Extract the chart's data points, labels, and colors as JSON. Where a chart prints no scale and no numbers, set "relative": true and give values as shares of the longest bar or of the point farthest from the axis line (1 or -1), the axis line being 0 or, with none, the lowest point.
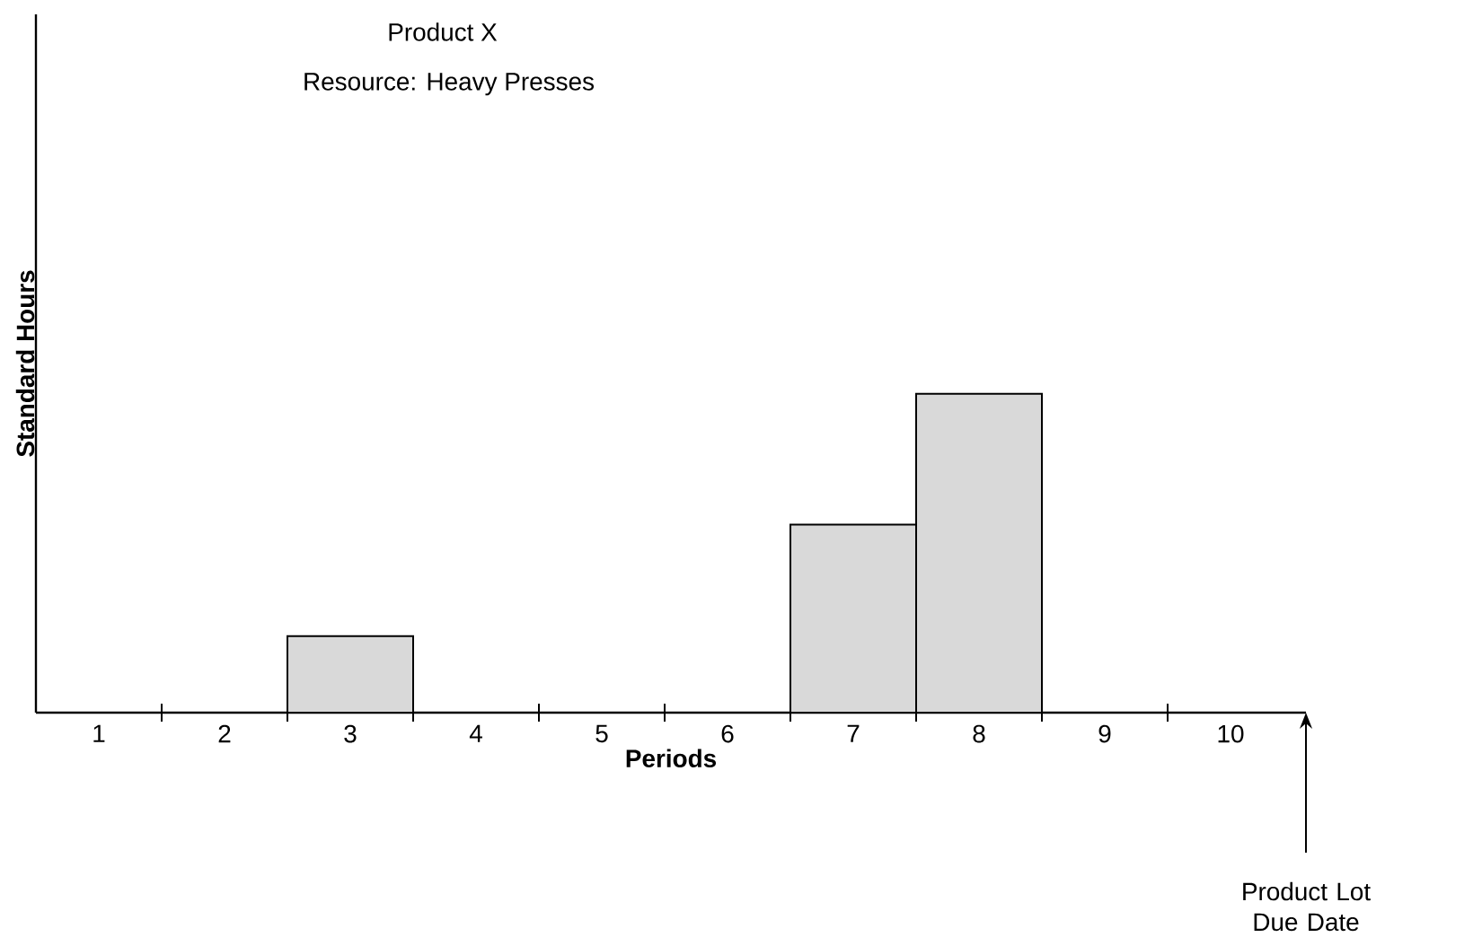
{
  "chart_data": {
    "type": "bar",
    "title": "Product X",
    "subtitle": "Resource: Heavy Presses",
    "xlabel": "Periods",
    "ylabel": "Standard Hours",
    "categories": [
      "1",
      "2",
      "3",
      "4",
      "5",
      "6",
      "7",
      "8",
      "9",
      "10"
    ],
    "values": [
      null,
      null,
      0.24,
      null,
      null,
      null,
      0.59,
      1,
      null,
      null
    ],
    "color": "#d9d9d9",
    "relative": true,
    "annotations": [
      "Product Lot Due Date"
    ]
  }
}
